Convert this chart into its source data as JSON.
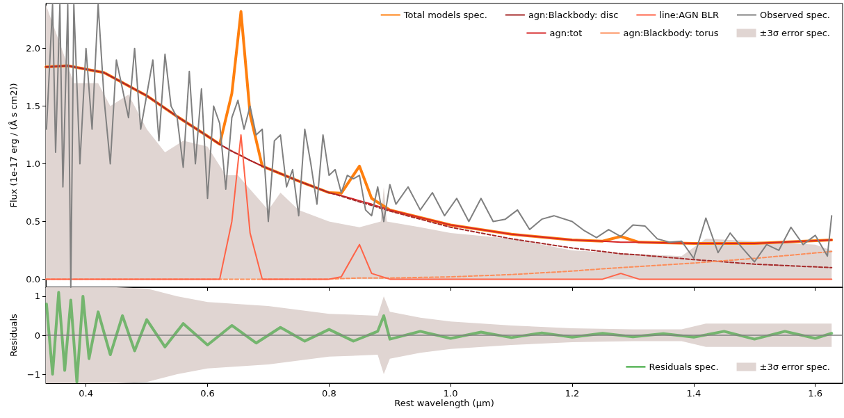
{
  "chart_data": [
    {
      "type": "line",
      "ylabel": "Flux (1e-17 erg / (Å s cm2))",
      "xlim": [
        0.334,
        1.645
      ],
      "xticks": [
        0.4,
        0.6,
        0.8,
        1,
        1.2,
        1.4,
        1.6
      ],
      "ylim": [
        -0.07,
        2.39
      ],
      "yticks": [
        {
          "value": 0,
          "label": "0.0"
        },
        0.5,
        {
          "value": 1,
          "label": "1.0"
        },
        1.5,
        {
          "value": 2,
          "label": "2.0"
        }
      ],
      "tick_labels": "y",
      "grid": false,
      "marker": "none",
      "legend": "top right",
      "series": [
        {
          "name": "Total models spec.",
          "color": "#ff7f0e",
          "x": [
            0.334,
            0.37,
            0.43,
            0.5,
            0.55,
            0.6,
            0.62,
            0.64,
            0.655,
            0.67,
            0.69,
            0.75,
            0.8,
            0.82,
            0.85,
            0.87,
            0.9,
            1.0,
            1.1,
            1.2,
            1.25,
            1.28,
            1.31,
            1.4,
            1.5,
            1.627
          ],
          "values": [
            1.84,
            1.85,
            1.79,
            1.59,
            1.41,
            1.24,
            1.17,
            1.61,
            2.32,
            1.43,
            0.98,
            0.85,
            0.75,
            0.745,
            0.98,
            0.7,
            0.6,
            0.47,
            0.39,
            0.34,
            0.33,
            0.37,
            0.32,
            0.31,
            0.31,
            0.34
          ]
        },
        {
          "name": "agn:tot",
          "color": "#d62728",
          "x": [
            0.334,
            0.37,
            0.43,
            0.5,
            0.55,
            0.6,
            0.62,
            0.64,
            0.655,
            0.67,
            0.69,
            0.75,
            0.8,
            0.82,
            0.85,
            0.87,
            0.9,
            1.0,
            1.1,
            1.2,
            1.25,
            1.28,
            1.31,
            1.4,
            1.5,
            1.627
          ],
          "values": [
            1.84,
            1.85,
            1.79,
            1.59,
            1.41,
            1.24,
            1.17,
            1.11,
            1.07,
            1.03,
            0.98,
            0.85,
            0.75,
            0.725,
            0.68,
            0.65,
            0.6,
            0.47,
            0.39,
            0.34,
            0.33,
            0.32,
            0.32,
            0.31,
            0.31,
            0.34
          ]
        },
        {
          "name": "agn:Blackbody: disc",
          "color": "#a52a2a",
          "line_style": "dashed",
          "x": [
            0.334,
            0.37,
            0.43,
            0.5,
            0.55,
            0.6,
            0.62,
            0.64,
            0.655,
            0.67,
            0.69,
            0.75,
            0.8,
            0.82,
            0.85,
            0.87,
            0.9,
            1.0,
            1.1,
            1.2,
            1.25,
            1.28,
            1.31,
            1.4,
            1.5,
            1.627
          ],
          "values": [
            1.84,
            1.85,
            1.79,
            1.59,
            1.41,
            1.24,
            1.17,
            1.11,
            1.07,
            1.03,
            0.98,
            0.85,
            0.75,
            0.72,
            0.67,
            0.64,
            0.59,
            0.45,
            0.35,
            0.27,
            0.24,
            0.22,
            0.21,
            0.17,
            0.13,
            0.1
          ]
        },
        {
          "name": "agn:Blackbody: torus",
          "color": "#fc8d59",
          "line_style": "dashed",
          "x": [
            0.334,
            0.37,
            0.43,
            0.5,
            0.55,
            0.6,
            0.62,
            0.64,
            0.655,
            0.67,
            0.69,
            0.75,
            0.8,
            0.82,
            0.85,
            0.87,
            0.9,
            1.0,
            1.1,
            1.2,
            1.25,
            1.28,
            1.31,
            1.4,
            1.5,
            1.627
          ],
          "values": [
            0,
            0,
            0,
            0,
            0,
            0,
            0,
            0,
            0,
            0,
            0,
            0,
            0,
            0.005,
            0.01,
            0.01,
            0.01,
            0.02,
            0.04,
            0.07,
            0.09,
            0.1,
            0.11,
            0.14,
            0.18,
            0.24
          ]
        },
        {
          "name": "line:AGN BLR",
          "color": "#ff6347",
          "x": [
            0.334,
            0.37,
            0.43,
            0.5,
            0.55,
            0.6,
            0.62,
            0.64,
            0.655,
            0.67,
            0.69,
            0.75,
            0.8,
            0.82,
            0.85,
            0.87,
            0.9,
            1.0,
            1.1,
            1.2,
            1.25,
            1.28,
            1.31,
            1.4,
            1.5,
            1.627
          ],
          "values": [
            0,
            0,
            0,
            0,
            0,
            0,
            0,
            0.5,
            1.25,
            0.4,
            0,
            0,
            0,
            0.02,
            0.3,
            0.05,
            0,
            0,
            0,
            0,
            0,
            0.05,
            0,
            0,
            0,
            0
          ]
        },
        {
          "type": "area",
          "name": "±3σ error spec.",
          "color": "#e0d5d2",
          "x": [
            0.334,
            0.36,
            0.38,
            0.42,
            0.44,
            0.47,
            0.5,
            0.53,
            0.56,
            0.6,
            0.63,
            0.65,
            0.7,
            0.72,
            0.75,
            0.8,
            0.85,
            0.885,
            0.89,
            0.895,
            0.95,
            1.0,
            1.1,
            1.2,
            1.3,
            1.38,
            1.42,
            1.5,
            1.6,
            1.627
          ],
          "values": [
            2.38,
            2.0,
            1.7,
            1.7,
            1.5,
            1.6,
            1.3,
            1.1,
            1.2,
            1.15,
            0.9,
            0.9,
            0.6,
            0.75,
            0.6,
            0.5,
            0.45,
            0.5,
            0.8,
            0.5,
            0.45,
            0.4,
            0.35,
            0.25,
            0.22,
            0.2,
            0.35,
            0.33,
            0.3,
            0.25
          ]
        },
        {
          "name": "Observed spec.",
          "color": "#808080",
          "x": [
            0.335,
            0.345,
            0.35,
            0.357,
            0.362,
            0.37,
            0.375,
            0.38,
            0.39,
            0.4,
            0.41,
            0.42,
            0.43,
            0.44,
            0.45,
            0.47,
            0.48,
            0.49,
            0.5,
            0.51,
            0.52,
            0.53,
            0.54,
            0.55,
            0.56,
            0.57,
            0.58,
            0.59,
            0.6,
            0.61,
            0.62,
            0.63,
            0.64,
            0.65,
            0.66,
            0.67,
            0.68,
            0.69,
            0.7,
            0.71,
            0.72,
            0.73,
            0.74,
            0.75,
            0.76,
            0.77,
            0.78,
            0.79,
            0.8,
            0.81,
            0.82,
            0.83,
            0.84,
            0.85,
            0.86,
            0.87,
            0.88,
            0.89,
            0.9,
            0.91,
            0.93,
            0.95,
            0.97,
            0.99,
            1.01,
            1.03,
            1.05,
            1.07,
            1.09,
            1.11,
            1.13,
            1.15,
            1.17,
            1.2,
            1.22,
            1.24,
            1.26,
            1.28,
            1.3,
            1.32,
            1.34,
            1.36,
            1.38,
            1.4,
            1.42,
            1.44,
            1.46,
            1.48,
            1.5,
            1.52,
            1.54,
            1.56,
            1.58,
            1.6,
            1.62,
            1.627
          ],
          "values": [
            1.3,
            2.38,
            1.1,
            2.38,
            0.8,
            2.38,
            -0.07,
            2.38,
            1.0,
            2.0,
            1.3,
            2.38,
            1.55,
            1.0,
            1.9,
            1.4,
            2.0,
            1.3,
            1.6,
            1.9,
            1.2,
            1.95,
            1.5,
            1.4,
            0.97,
            1.8,
            1.0,
            1.65,
            0.7,
            1.5,
            1.35,
            0.78,
            1.4,
            1.55,
            1.3,
            1.5,
            1.25,
            1.3,
            0.5,
            1.2,
            1.25,
            0.8,
            0.95,
            0.55,
            1.3,
            1.0,
            0.65,
            1.25,
            0.9,
            0.95,
            0.75,
            0.9,
            0.87,
            0.9,
            0.6,
            0.55,
            0.8,
            0.5,
            0.82,
            0.65,
            0.8,
            0.6,
            0.75,
            0.55,
            0.7,
            0.5,
            0.7,
            0.5,
            0.52,
            0.6,
            0.43,
            0.52,
            0.55,
            0.5,
            0.42,
            0.36,
            0.43,
            0.37,
            0.47,
            0.46,
            0.35,
            0.32,
            0.33,
            0.18,
            0.53,
            0.23,
            0.4,
            0.27,
            0.15,
            0.3,
            0.25,
            0.45,
            0.3,
            0.38,
            0.2,
            0.55
          ]
        }
      ]
    },
    {
      "type": "line",
      "xlabel": "Rest wavelength (µm)",
      "ylabel": "Residuals",
      "xlim": [
        0.334,
        1.645
      ],
      "xticks": [
        0.4,
        0.6,
        0.8,
        {
          "value": 1.0,
          "label": "1.0"
        },
        1.2,
        1.4,
        1.6
      ],
      "ylim": [
        -1.23,
        1.23
      ],
      "yticks": [
        {
          "value": -1,
          "label": "−1"
        },
        0,
        1
      ],
      "grid": false,
      "marker": "none",
      "legend": "bottom right",
      "ref_lines": [
        {
          "axis": "y",
          "value": 0,
          "color": "#808080"
        }
      ],
      "series": [
        {
          "name": "Residuals spec.",
          "color": "#2ca02c",
          "x": [
            0.335,
            0.345,
            0.355,
            0.365,
            0.375,
            0.385,
            0.395,
            0.405,
            0.42,
            0.44,
            0.46,
            0.48,
            0.5,
            0.53,
            0.56,
            0.6,
            0.64,
            0.68,
            0.72,
            0.76,
            0.8,
            0.84,
            0.88,
            0.89,
            0.9,
            0.95,
            1.0,
            1.05,
            1.1,
            1.15,
            1.2,
            1.25,
            1.3,
            1.35,
            1.4,
            1.45,
            1.5,
            1.55,
            1.6,
            1.627
          ],
          "values": [
            0.8,
            -1.0,
            1.1,
            -0.9,
            0.9,
            -1.2,
            1.0,
            -0.6,
            0.6,
            -0.5,
            0.5,
            -0.4,
            0.4,
            -0.3,
            0.3,
            -0.25,
            0.25,
            -0.2,
            0.2,
            -0.15,
            0.15,
            -0.15,
            0.1,
            0.5,
            -0.1,
            0.1,
            -0.08,
            0.08,
            -0.06,
            0.06,
            -0.05,
            0.05,
            -0.04,
            0.04,
            -0.05,
            0.1,
            -0.1,
            0.1,
            -0.08,
            0.05
          ]
        },
        {
          "type": "line",
          "name": "±3σ error spec.",
          "color": "#e0d5d2",
          "x": [
            0.334,
            0.35,
            0.45,
            0.5,
            0.55,
            0.6,
            0.7,
            0.8,
            0.88,
            0.89,
            0.9,
            0.95,
            1.0,
            1.1,
            1.2,
            1.3,
            1.38,
            1.42,
            1.5,
            1.627
          ],
          "values": [
            null,
            null,
            null,
            null,
            null,
            null,
            null,
            null,
            null,
            null,
            null,
            null,
            null,
            null,
            null,
            null,
            null,
            null,
            null,
            null
          ],
          "upper": [
            1.23,
            1.23,
            1.23,
            1.2,
            1.0,
            0.85,
            0.75,
            0.55,
            0.5,
            1.0,
            0.6,
            0.45,
            0.35,
            0.25,
            0.18,
            0.15,
            0.15,
            0.3,
            0.3,
            0.3
          ],
          "lower": [
            -1.23,
            -1.23,
            -1.23,
            -1.2,
            -1.0,
            -0.85,
            -0.75,
            -0.55,
            -0.5,
            -1.0,
            -0.6,
            -0.45,
            -0.35,
            -0.25,
            -0.18,
            -0.15,
            -0.15,
            -0.3,
            -0.3,
            -0.3
          ]
        }
      ]
    }
  ]
}
